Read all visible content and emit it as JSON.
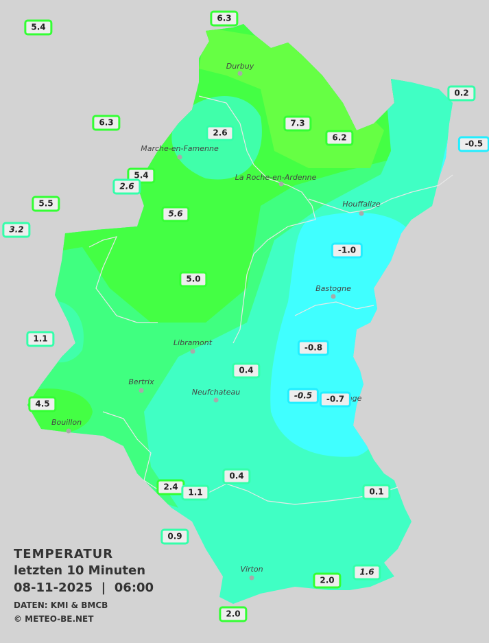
{
  "legend": {
    "title": "TEMPERATUR",
    "subtitle": "letzten 10 Minuten",
    "datetime": "08-11-2025  |  06:00",
    "source": "DATEN: KMI & BMCB",
    "copyright": "© METEO-BE.NET"
  },
  "colors": {
    "background": "#d3d3d3",
    "cold_negative": "#40ffff",
    "cool_0_3": "#40ffc4",
    "mild_3_5": "#40ff80",
    "warm_5_7": "#44ff44",
    "warmest_7_plus": "#66ff44",
    "label_border_green": "#33ff33",
    "label_border_teal": "#33ffaa",
    "label_border_cyan": "#22eeff"
  },
  "cities": [
    "Durbuy",
    "Marche-en-Famenne",
    "La Roche-en-Ardenne",
    "Houffalize",
    "Bastogne",
    "Libramont",
    "Bertrix",
    "Neufchateau",
    "Bouillon",
    "Virton",
    "nge"
  ],
  "stations": [
    {
      "value": "5.4",
      "band": "green",
      "italic": false
    },
    {
      "value": "6.3",
      "band": "green",
      "italic": false
    },
    {
      "value": "0.2",
      "band": "teal",
      "italic": false
    },
    {
      "value": "6.3",
      "band": "green",
      "italic": false
    },
    {
      "value": "2.6",
      "band": "teal",
      "italic": false
    },
    {
      "value": "7.3",
      "band": "green",
      "italic": false
    },
    {
      "value": "6.2",
      "band": "green",
      "italic": false
    },
    {
      "value": "-0.5",
      "band": "cyan",
      "italic": false
    },
    {
      "value": "5.4",
      "band": "green",
      "italic": false
    },
    {
      "value": "2.6",
      "band": "teal",
      "italic": true
    },
    {
      "value": "5.5",
      "band": "green",
      "italic": false
    },
    {
      "value": "3.2",
      "band": "teal",
      "italic": true
    },
    {
      "value": "5.6",
      "band": "green",
      "italic": true
    },
    {
      "value": "-1.0",
      "band": "cyan",
      "italic": false
    },
    {
      "value": "5.0",
      "band": "green",
      "italic": false
    },
    {
      "value": "1.1",
      "band": "teal",
      "italic": false
    },
    {
      "value": "-0.8",
      "band": "cyan",
      "italic": false
    },
    {
      "value": "0.4",
      "band": "teal",
      "italic": false
    },
    {
      "value": "-0.5",
      "band": "cyan",
      "italic": true
    },
    {
      "value": "-0.7",
      "band": "cyan",
      "italic": false
    },
    {
      "value": "4.5",
      "band": "green",
      "italic": false
    },
    {
      "value": "0.4",
      "band": "teal",
      "italic": false
    },
    {
      "value": "2.4",
      "band": "green",
      "italic": false
    },
    {
      "value": "1.1",
      "band": "teal",
      "italic": false
    },
    {
      "value": "0.1",
      "band": "teal",
      "italic": false
    },
    {
      "value": "0.9",
      "band": "teal",
      "italic": false
    },
    {
      "value": "2.0",
      "band": "green",
      "italic": false
    },
    {
      "value": "1.6",
      "band": "teal",
      "italic": true
    },
    {
      "value": "2.0",
      "band": "green",
      "italic": false
    }
  ]
}
